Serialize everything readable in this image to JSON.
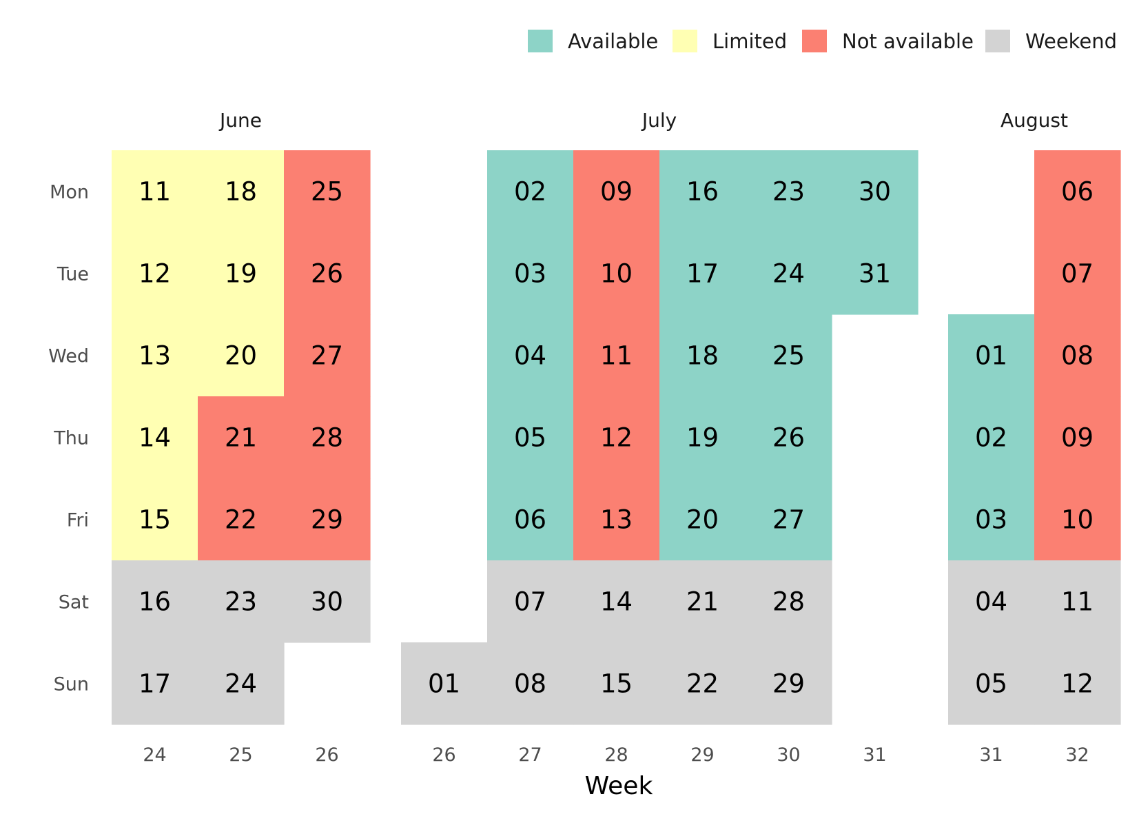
{
  "chart_data": {
    "type": "heatmap",
    "xlabel": "Week",
    "ylabel": "",
    "weekday_labels": [
      "Mon",
      "Tue",
      "Wed",
      "Thu",
      "Fri",
      "Sat",
      "Sun"
    ],
    "legend_position": "top-right",
    "legend": [
      {
        "status": "available",
        "label": "Available",
        "color": "#8dd3c7"
      },
      {
        "status": "limited",
        "label": "Limited",
        "color": "#ffffb3"
      },
      {
        "status": "not_available",
        "label": "Not available",
        "color": "#fb8072"
      },
      {
        "status": "weekend",
        "label": "Weekend",
        "color": "#d3d3d3"
      }
    ],
    "months": [
      {
        "name": "June",
        "weeks": [
          {
            "week": "24",
            "days": [
              {
                "dow": 0,
                "day": "11",
                "status": "limited"
              },
              {
                "dow": 1,
                "day": "12",
                "status": "limited"
              },
              {
                "dow": 2,
                "day": "13",
                "status": "limited"
              },
              {
                "dow": 3,
                "day": "14",
                "status": "limited"
              },
              {
                "dow": 4,
                "day": "15",
                "status": "limited"
              },
              {
                "dow": 5,
                "day": "16",
                "status": "weekend"
              },
              {
                "dow": 6,
                "day": "17",
                "status": "weekend"
              }
            ]
          },
          {
            "week": "25",
            "days": [
              {
                "dow": 0,
                "day": "18",
                "status": "limited"
              },
              {
                "dow": 1,
                "day": "19",
                "status": "limited"
              },
              {
                "dow": 2,
                "day": "20",
                "status": "limited"
              },
              {
                "dow": 3,
                "day": "21",
                "status": "not_available"
              },
              {
                "dow": 4,
                "day": "22",
                "status": "not_available"
              },
              {
                "dow": 5,
                "day": "23",
                "status": "weekend"
              },
              {
                "dow": 6,
                "day": "24",
                "status": "weekend"
              }
            ]
          },
          {
            "week": "26",
            "days": [
              {
                "dow": 0,
                "day": "25",
                "status": "not_available"
              },
              {
                "dow": 1,
                "day": "26",
                "status": "not_available"
              },
              {
                "dow": 2,
                "day": "27",
                "status": "not_available"
              },
              {
                "dow": 3,
                "day": "28",
                "status": "not_available"
              },
              {
                "dow": 4,
                "day": "29",
                "status": "not_available"
              },
              {
                "dow": 5,
                "day": "30",
                "status": "weekend"
              }
            ]
          }
        ]
      },
      {
        "name": "July",
        "weeks": [
          {
            "week": "26",
            "days": [
              {
                "dow": 6,
                "day": "01",
                "status": "weekend"
              }
            ]
          },
          {
            "week": "27",
            "days": [
              {
                "dow": 0,
                "day": "02",
                "status": "available"
              },
              {
                "dow": 1,
                "day": "03",
                "status": "available"
              },
              {
                "dow": 2,
                "day": "04",
                "status": "available"
              },
              {
                "dow": 3,
                "day": "05",
                "status": "available"
              },
              {
                "dow": 4,
                "day": "06",
                "status": "available"
              },
              {
                "dow": 5,
                "day": "07",
                "status": "weekend"
              },
              {
                "dow": 6,
                "day": "08",
                "status": "weekend"
              }
            ]
          },
          {
            "week": "28",
            "days": [
              {
                "dow": 0,
                "day": "09",
                "status": "not_available"
              },
              {
                "dow": 1,
                "day": "10",
                "status": "not_available"
              },
              {
                "dow": 2,
                "day": "11",
                "status": "not_available"
              },
              {
                "dow": 3,
                "day": "12",
                "status": "not_available"
              },
              {
                "dow": 4,
                "day": "13",
                "status": "not_available"
              },
              {
                "dow": 5,
                "day": "14",
                "status": "weekend"
              },
              {
                "dow": 6,
                "day": "15",
                "status": "weekend"
              }
            ]
          },
          {
            "week": "29",
            "days": [
              {
                "dow": 0,
                "day": "16",
                "status": "available"
              },
              {
                "dow": 1,
                "day": "17",
                "status": "available"
              },
              {
                "dow": 2,
                "day": "18",
                "status": "available"
              },
              {
                "dow": 3,
                "day": "19",
                "status": "available"
              },
              {
                "dow": 4,
                "day": "20",
                "status": "available"
              },
              {
                "dow": 5,
                "day": "21",
                "status": "weekend"
              },
              {
                "dow": 6,
                "day": "22",
                "status": "weekend"
              }
            ]
          },
          {
            "week": "30",
            "days": [
              {
                "dow": 0,
                "day": "23",
                "status": "available"
              },
              {
                "dow": 1,
                "day": "24",
                "status": "available"
              },
              {
                "dow": 2,
                "day": "25",
                "status": "available"
              },
              {
                "dow": 3,
                "day": "26",
                "status": "available"
              },
              {
                "dow": 4,
                "day": "27",
                "status": "available"
              },
              {
                "dow": 5,
                "day": "28",
                "status": "weekend"
              },
              {
                "dow": 6,
                "day": "29",
                "status": "weekend"
              }
            ]
          },
          {
            "week": "31",
            "days": [
              {
                "dow": 0,
                "day": "30",
                "status": "available"
              },
              {
                "dow": 1,
                "day": "31",
                "status": "available"
              }
            ]
          }
        ]
      },
      {
        "name": "August",
        "weeks": [
          {
            "week": "31",
            "days": [
              {
                "dow": 2,
                "day": "01",
                "status": "available"
              },
              {
                "dow": 3,
                "day": "02",
                "status": "available"
              },
              {
                "dow": 4,
                "day": "03",
                "status": "available"
              },
              {
                "dow": 5,
                "day": "04",
                "status": "weekend"
              },
              {
                "dow": 6,
                "day": "05",
                "status": "weekend"
              }
            ]
          },
          {
            "week": "32",
            "days": [
              {
                "dow": 0,
                "day": "06",
                "status": "not_available"
              },
              {
                "dow": 1,
                "day": "07",
                "status": "not_available"
              },
              {
                "dow": 2,
                "day": "08",
                "status": "not_available"
              },
              {
                "dow": 3,
                "day": "09",
                "status": "not_available"
              },
              {
                "dow": 4,
                "day": "10",
                "status": "not_available"
              },
              {
                "dow": 5,
                "day": "11",
                "status": "weekend"
              },
              {
                "dow": 6,
                "day": "12",
                "status": "weekend"
              }
            ]
          }
        ]
      }
    ]
  }
}
